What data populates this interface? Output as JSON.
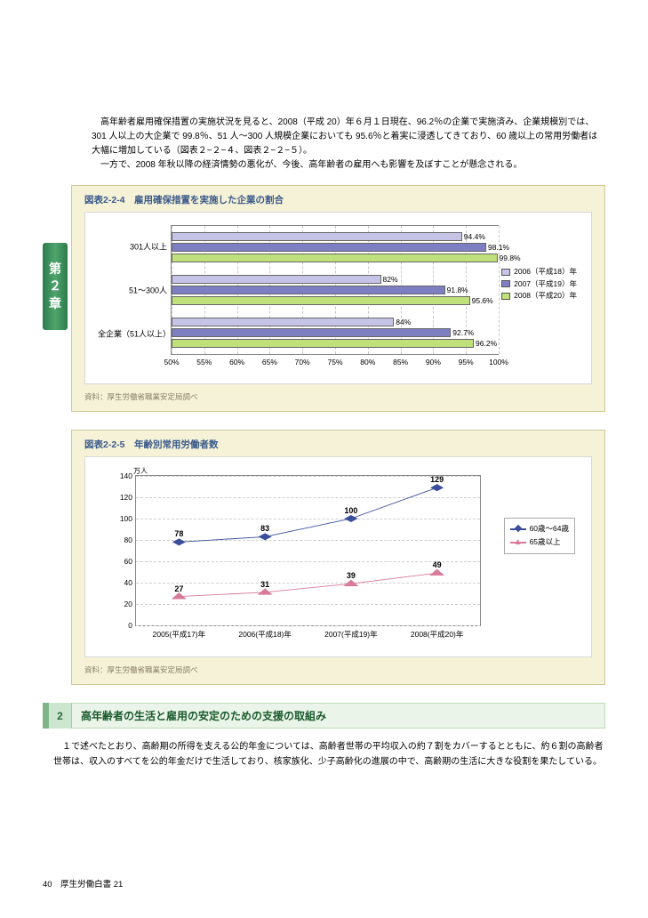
{
  "intro": {
    "p1": "　高年齢者雇用確保措置の実施状況を見ると、2008（平成 20）年６月１日現在、96.2％の企業で実施済み、企業規模別では、301 人以上の大企業で 99.8％、51 人～300 人規模企業においても 95.6％と着実に浸透してきており、60 歳以上の常用労働者は大幅に増加している（図表２−２−４、図表２−２−５）。",
    "p2": "　一方で、2008 年秋以降の経済情勢の悪化が、今後、高年齢者の雇用へも影響を及ぼすことが懸念される。"
  },
  "chapter_tab": [
    "第",
    "２",
    "章"
  ],
  "chart1": {
    "title": "図表2-2-4　雇用確保措置を実施した企業の割合",
    "x_min": 50,
    "x_max": 100,
    "x_step": 5,
    "x_ticks": [
      "50%",
      "55%",
      "60%",
      "65%",
      "70%",
      "75%",
      "80%",
      "85%",
      "90%",
      "95%",
      "100%"
    ],
    "categories": [
      "301人以上",
      "51～300人",
      "全企業（51人以上）"
    ],
    "series": [
      {
        "label": "2006（平成18）年",
        "color": "#c5c3e6",
        "values": [
          94.4,
          82.0,
          84.0
        ]
      },
      {
        "label": "2007（平成19）年",
        "color": "#7d7fc2",
        "values": [
          98.1,
          91.8,
          92.7
        ]
      },
      {
        "label": "2008（平成20）年",
        "color": "#bfe07a",
        "values": [
          99.8,
          95.6,
          96.2
        ]
      }
    ],
    "source": "資料：厚生労働省職業安定局調べ"
  },
  "chart2": {
    "title": "図表2-2-5　年齢別常用労働者数",
    "y_unit": "万人",
    "y_min": 0,
    "y_max": 140,
    "y_step": 20,
    "x_cats": [
      "2005(平成17)年",
      "2006(平成18)年",
      "2007(平成19)年",
      "2008(平成20)年"
    ],
    "series": [
      {
        "label": "60歳～64歳",
        "color": "#3a4e9a",
        "marker": "diamond",
        "values": [
          78,
          83,
          100,
          129
        ]
      },
      {
        "label": "65歳以上",
        "color": "#d87a9a",
        "marker": "triangle",
        "values": [
          27,
          31,
          39,
          49
        ]
      }
    ],
    "source": "資料：厚生労働省職業安定局調べ"
  },
  "section": {
    "num": "2",
    "title": "高年齢者の生活と雇用の安定のための支援の取組み",
    "para": "１で述べたとおり、高齢期の所得を支える公的年金については、高齢者世帯の平均収入の約７割をカバーするとともに、約６割の高齢者世帯は、収入のすべてを公的年金だけで生活しており、核家族化、少子高齢化の進展の中で、高齢期の生活に大きな役割を果たしている。"
  },
  "footer": {
    "page": "40",
    "label": "厚生労働白書 21"
  }
}
